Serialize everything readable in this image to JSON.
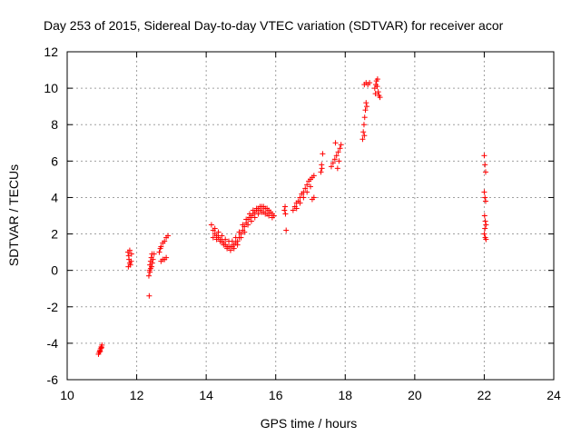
{
  "chart_data": {
    "type": "scatter",
    "title": "Day 253 of 2015, Sidereal Day-to-day VTEC variation (SDTVAR) for receiver acor",
    "xlabel": "GPS time / hours",
    "ylabel": "SDTVAR / TECUs",
    "xlim": [
      10,
      24
    ],
    "ylim": [
      -6,
      12
    ],
    "xticks": [
      10,
      12,
      14,
      16,
      18,
      20,
      22,
      24
    ],
    "yticks": [
      -6,
      -4,
      -2,
      0,
      2,
      4,
      6,
      8,
      10,
      12
    ],
    "grid": true,
    "marker": "+",
    "marker_color": "#ff0000",
    "series": [
      {
        "name": "SDTVAR",
        "points": [
          [
            10.9,
            -4.6
          ],
          [
            10.92,
            -4.5
          ],
          [
            10.94,
            -4.4
          ],
          [
            10.96,
            -4.3
          ],
          [
            10.98,
            -4.2
          ],
          [
            11.0,
            -4.1
          ],
          [
            10.95,
            -4.45
          ],
          [
            10.99,
            -4.25
          ],
          [
            11.75,
            1.0
          ],
          [
            11.77,
            0.8
          ],
          [
            11.78,
            0.6
          ],
          [
            11.8,
            0.4
          ],
          [
            11.82,
            0.3
          ],
          [
            11.84,
            0.5
          ],
          [
            11.85,
            0.9
          ],
          [
            11.8,
            1.1
          ],
          [
            11.76,
            0.2
          ],
          [
            12.35,
            -0.3
          ],
          [
            12.37,
            0.0
          ],
          [
            12.38,
            0.3
          ],
          [
            12.4,
            0.5
          ],
          [
            12.42,
            0.7
          ],
          [
            12.44,
            0.9
          ],
          [
            12.36,
            -1.4
          ],
          [
            12.38,
            -0.1
          ],
          [
            12.4,
            0.1
          ],
          [
            12.43,
            0.2
          ],
          [
            12.45,
            0.4
          ],
          [
            12.47,
            0.6
          ],
          [
            12.5,
            0.9
          ],
          [
            12.65,
            1.0
          ],
          [
            12.7,
            1.3
          ],
          [
            12.75,
            1.5
          ],
          [
            12.8,
            1.6
          ],
          [
            12.85,
            1.8
          ],
          [
            12.9,
            1.9
          ],
          [
            12.7,
            0.5
          ],
          [
            12.75,
            0.6
          ],
          [
            12.8,
            0.6
          ],
          [
            12.85,
            0.7
          ],
          [
            12.68,
            1.2
          ],
          [
            14.15,
            2.5
          ],
          [
            14.2,
            2.2
          ],
          [
            14.25,
            2.0
          ],
          [
            14.3,
            1.9
          ],
          [
            14.35,
            1.8
          ],
          [
            14.4,
            1.7
          ],
          [
            14.45,
            1.6
          ],
          [
            14.5,
            1.5
          ],
          [
            14.55,
            1.4
          ],
          [
            14.6,
            1.3
          ],
          [
            14.65,
            1.3
          ],
          [
            14.7,
            1.3
          ],
          [
            14.75,
            1.3
          ],
          [
            14.8,
            1.4
          ],
          [
            14.85,
            1.5
          ],
          [
            14.9,
            1.6
          ],
          [
            14.95,
            1.8
          ],
          [
            15.0,
            2.0
          ],
          [
            15.05,
            2.2
          ],
          [
            15.1,
            2.4
          ],
          [
            15.15,
            2.6
          ],
          [
            15.2,
            2.8
          ],
          [
            15.25,
            2.9
          ],
          [
            15.3,
            3.0
          ],
          [
            15.35,
            3.1
          ],
          [
            15.4,
            3.2
          ],
          [
            15.45,
            3.3
          ],
          [
            15.5,
            3.4
          ],
          [
            15.55,
            3.5
          ],
          [
            15.6,
            3.5
          ],
          [
            15.65,
            3.5
          ],
          [
            15.7,
            3.4
          ],
          [
            15.75,
            3.4
          ],
          [
            15.8,
            3.3
          ],
          [
            15.85,
            3.2
          ],
          [
            15.9,
            3.1
          ],
          [
            15.95,
            3.0
          ],
          [
            14.2,
            1.8
          ],
          [
            14.3,
            1.7
          ],
          [
            14.4,
            1.6
          ],
          [
            14.5,
            1.4
          ],
          [
            14.6,
            1.2
          ],
          [
            14.7,
            1.1
          ],
          [
            14.8,
            1.2
          ],
          [
            14.9,
            1.4
          ],
          [
            15.0,
            1.8
          ],
          [
            15.1,
            2.1
          ],
          [
            15.2,
            2.5
          ],
          [
            15.3,
            2.7
          ],
          [
            15.4,
            2.9
          ],
          [
            15.5,
            3.1
          ],
          [
            15.6,
            3.2
          ],
          [
            15.7,
            3.1
          ],
          [
            15.8,
            3.0
          ],
          [
            15.9,
            2.9
          ],
          [
            14.25,
            2.3
          ],
          [
            14.35,
            2.1
          ],
          [
            14.45,
            1.9
          ],
          [
            14.55,
            1.7
          ],
          [
            14.65,
            1.6
          ],
          [
            14.75,
            1.6
          ],
          [
            14.85,
            1.8
          ],
          [
            14.95,
            2.1
          ],
          [
            15.05,
            2.5
          ],
          [
            15.15,
            2.8
          ],
          [
            15.25,
            3.1
          ],
          [
            15.35,
            3.3
          ],
          [
            15.45,
            3.4
          ],
          [
            15.55,
            3.3
          ],
          [
            15.65,
            3.2
          ],
          [
            15.75,
            3.1
          ],
          [
            16.25,
            3.3
          ],
          [
            16.27,
            3.5
          ],
          [
            16.3,
            2.2
          ],
          [
            16.28,
            3.1
          ],
          [
            16.5,
            3.3
          ],
          [
            16.55,
            3.5
          ],
          [
            16.6,
            3.7
          ],
          [
            16.65,
            3.8
          ],
          [
            16.7,
            4.0
          ],
          [
            16.75,
            4.2
          ],
          [
            16.8,
            4.3
          ],
          [
            16.85,
            4.5
          ],
          [
            16.9,
            4.7
          ],
          [
            16.95,
            4.9
          ],
          [
            17.0,
            5.0
          ],
          [
            17.05,
            5.1
          ],
          [
            17.1,
            5.2
          ],
          [
            16.6,
            3.4
          ],
          [
            16.7,
            3.7
          ],
          [
            16.8,
            4.0
          ],
          [
            16.9,
            4.3
          ],
          [
            17.0,
            4.6
          ],
          [
            17.1,
            4.0
          ],
          [
            17.05,
            3.9
          ],
          [
            17.3,
            5.4
          ],
          [
            17.32,
            5.8
          ],
          [
            17.35,
            6.4
          ],
          [
            17.33,
            5.6
          ],
          [
            17.6,
            5.7
          ],
          [
            17.65,
            5.9
          ],
          [
            17.7,
            6.1
          ],
          [
            17.75,
            6.3
          ],
          [
            17.8,
            6.5
          ],
          [
            17.85,
            6.7
          ],
          [
            17.72,
            7.0
          ],
          [
            17.78,
            5.6
          ],
          [
            17.82,
            6.0
          ],
          [
            17.88,
            6.9
          ],
          [
            18.5,
            7.2
          ],
          [
            18.52,
            7.6
          ],
          [
            18.54,
            8.0
          ],
          [
            18.56,
            8.4
          ],
          [
            18.58,
            8.8
          ],
          [
            18.6,
            9.2
          ],
          [
            18.55,
            10.2
          ],
          [
            18.6,
            10.3
          ],
          [
            18.65,
            10.2
          ],
          [
            18.7,
            10.3
          ],
          [
            18.55,
            7.4
          ],
          [
            18.62,
            9.0
          ],
          [
            18.85,
            10.0
          ],
          [
            18.88,
            10.2
          ],
          [
            18.9,
            10.4
          ],
          [
            18.92,
            10.1
          ],
          [
            18.95,
            9.8
          ],
          [
            18.97,
            9.6
          ],
          [
            19.0,
            9.5
          ],
          [
            18.93,
            10.5
          ],
          [
            18.87,
            9.7
          ],
          [
            22.0,
            6.3
          ],
          [
            22.02,
            5.8
          ],
          [
            22.04,
            5.4
          ],
          [
            22.0,
            4.3
          ],
          [
            22.02,
            4.0
          ],
          [
            22.04,
            3.8
          ],
          [
            22.01,
            3.0
          ],
          [
            22.03,
            2.7
          ],
          [
            22.05,
            2.5
          ],
          [
            22.0,
            2.0
          ],
          [
            22.03,
            1.8
          ],
          [
            22.05,
            1.7
          ],
          [
            22.02,
            2.3
          ]
        ]
      }
    ]
  }
}
